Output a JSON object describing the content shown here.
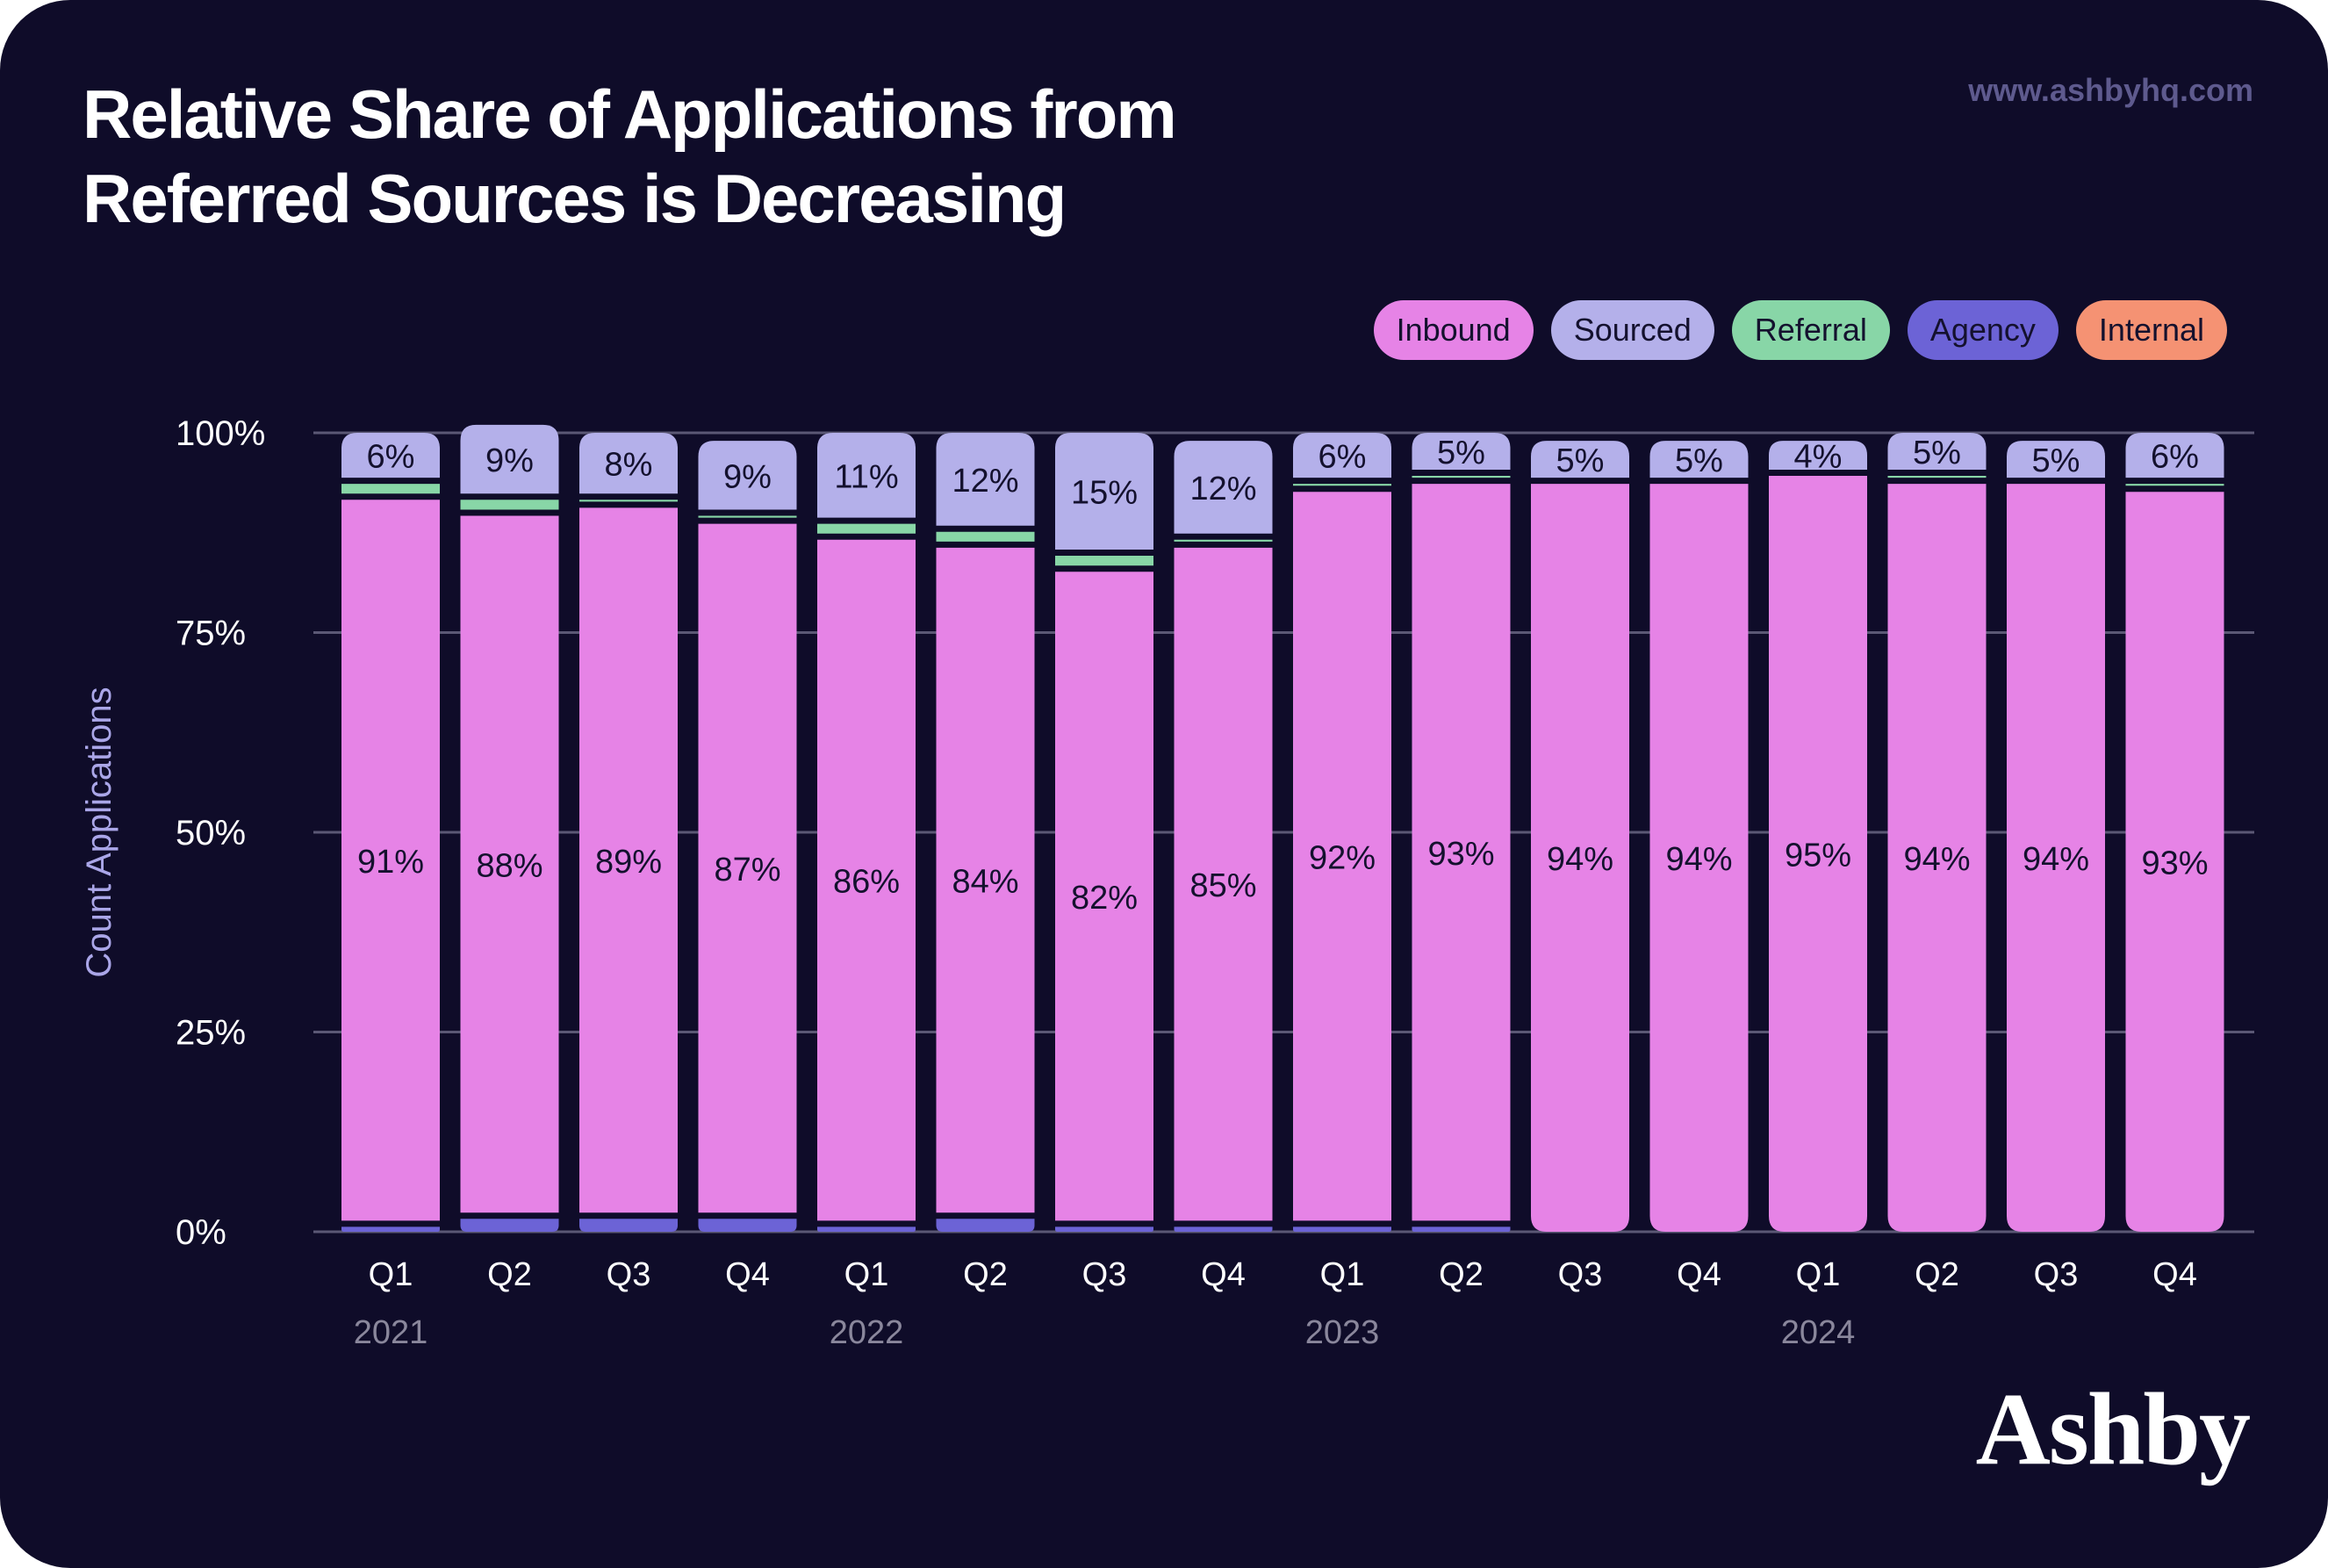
{
  "header": {
    "title_line1": "Relative Share of Applications from",
    "title_line2": "Referred Sources is Decreasing",
    "url": "www.ashbyhq.com"
  },
  "brand": {
    "logo_text": "Ashby"
  },
  "chart_data": {
    "type": "bar",
    "stacked": true,
    "title": "Relative Share of Applications from Referred Sources is Decreasing",
    "xlabel": "",
    "ylabel": "Count Applications",
    "ylim": [
      0,
      100
    ],
    "yticks": [
      0,
      25,
      50,
      75,
      100
    ],
    "ytick_labels": [
      "0%",
      "25%",
      "50%",
      "75%",
      "100%"
    ],
    "grid": true,
    "legend_position": "top-right",
    "categories": [
      "Q1",
      "Q2",
      "Q3",
      "Q4",
      "Q1",
      "Q2",
      "Q3",
      "Q4",
      "Q1",
      "Q2",
      "Q3",
      "Q4",
      "Q1",
      "Q2",
      "Q3",
      "Q4"
    ],
    "years": [
      {
        "label": "2021",
        "index": 0
      },
      {
        "label": "2022",
        "index": 4
      },
      {
        "label": "2023",
        "index": 8
      },
      {
        "label": "2024",
        "index": 12
      }
    ],
    "series": [
      {
        "name": "Agency",
        "color": "#6c63d6",
        "values": [
          1,
          2,
          2,
          2,
          1,
          2,
          1,
          1,
          1,
          1,
          0,
          0,
          0,
          0,
          0,
          0
        ]
      },
      {
        "name": "Inbound",
        "color": "#e683e6",
        "values": [
          91,
          88,
          89,
          87,
          86,
          84,
          82,
          85,
          92,
          93,
          94,
          94,
          95,
          94,
          94,
          93
        ]
      },
      {
        "name": "Referral",
        "color": "#88d6a7",
        "values": [
          2,
          2,
          1,
          1,
          2,
          2,
          2,
          1,
          1,
          1,
          0,
          0,
          0,
          1,
          0,
          1
        ]
      },
      {
        "name": "Sourced",
        "color": "#b4b0ea",
        "values": [
          6,
          9,
          8,
          9,
          11,
          12,
          15,
          12,
          6,
          5,
          5,
          5,
          4,
          5,
          5,
          6
        ]
      },
      {
        "name": "Internal",
        "color": "#f59273",
        "values": [
          0,
          0,
          0,
          0,
          0,
          0,
          0,
          0,
          0,
          0,
          0,
          0,
          0,
          0,
          0,
          0
        ]
      }
    ],
    "labeled_series": [
      "Inbound",
      "Sourced"
    ]
  },
  "legend": [
    {
      "name": "Inbound",
      "color": "#e683e6"
    },
    {
      "name": "Sourced",
      "color": "#b4b0ea"
    },
    {
      "name": "Referral",
      "color": "#88d6a7"
    },
    {
      "name": "Agency",
      "color": "#6c63d6"
    },
    {
      "name": "Internal",
      "color": "#f59273"
    }
  ],
  "colors": {
    "background": "#0f0c29",
    "grid": "#5b5875",
    "tick_text": "#ffffff",
    "year_text": "#8a879c",
    "ylabel": "#aaa6e8"
  }
}
